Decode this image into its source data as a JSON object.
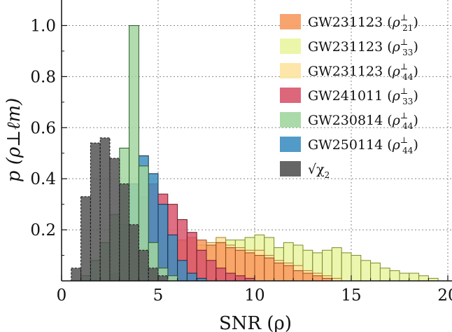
{
  "chart_data": {
    "type": "histogram",
    "xlabel": "SNR (ρ)",
    "ylabel": "p (ρ⊥ℓm)",
    "xlim": [
      0,
      20
    ],
    "ylim": [
      0,
      1.1
    ],
    "xticks": [
      0,
      5,
      10,
      15,
      20
    ],
    "yticks": [
      0.2,
      0.4,
      0.6,
      0.8,
      1.0
    ],
    "xtick_labels": [
      "0",
      "5",
      "10",
      "15",
      "20"
    ],
    "ytick_labels": [
      "0.2",
      "0.4",
      "0.6",
      "0.8",
      "1.0"
    ],
    "grid": true,
    "legend_position": "upper-right",
    "series": [
      {
        "name": "GW231123 (ρ⊥33)",
        "color": "#eaf5a0",
        "edge": "#7d8a2a",
        "x0": 3.0,
        "width": 0.5,
        "values": [
          0.01,
          0.02,
          0.04,
          0.07,
          0.1,
          0.13,
          0.14,
          0.13,
          0.12,
          0.13,
          0.15,
          0.16,
          0.16,
          0.17,
          0.18,
          0.17,
          0.13,
          0.15,
          0.14,
          0.12,
          0.11,
          0.12,
          0.13,
          0.11,
          0.1,
          0.08,
          0.07,
          0.05,
          0.04,
          0.03,
          0.03,
          0.02,
          0.01
        ]
      },
      {
        "name": "GW231123 (ρ⊥44)",
        "color": "#fde3a0",
        "edge": "#a87d2a",
        "x0": 3.0,
        "width": 0.5,
        "values": [
          0.02,
          0.05,
          0.09,
          0.13,
          0.15,
          0.17,
          0.16,
          0.15,
          0.14,
          0.15,
          0.17,
          0.14,
          0.13,
          0.12,
          0.12,
          0.1,
          0.08,
          0.07,
          0.06,
          0.04,
          0.03,
          0.02,
          0.01
        ]
      },
      {
        "name": "GW231123 (ρ⊥21)",
        "color": "#f79a5f",
        "edge": "#9a4a1a",
        "x0": 3.0,
        "width": 0.5,
        "values": [
          0.01,
          0.03,
          0.05,
          0.06,
          0.08,
          0.12,
          0.16,
          0.17,
          0.16,
          0.14,
          0.15,
          0.13,
          0.12,
          0.11,
          0.1,
          0.09,
          0.07,
          0.06,
          0.04,
          0.03,
          0.02,
          0.01
        ]
      },
      {
        "name": "GW241011 (ρ⊥33)",
        "color": "#d9566c",
        "edge": "#6e1a28",
        "x0": 2.5,
        "width": 0.5,
        "values": [
          0.02,
          0.08,
          0.2,
          0.33,
          0.38,
          0.34,
          0.3,
          0.24,
          0.19,
          0.12,
          0.08,
          0.05,
          0.03,
          0.02,
          0.01
        ]
      },
      {
        "name": "GW250114 (ρ⊥44)",
        "color": "#3f8fc1",
        "edge": "#0f2f4a",
        "x0": 2.5,
        "width": 0.5,
        "values": [
          0.03,
          0.22,
          0.38,
          0.49,
          0.42,
          0.3,
          0.18,
          0.08,
          0.03,
          0.01
        ]
      },
      {
        "name": "GW230814 (ρ⊥44)",
        "color": "#a2d6a0",
        "edge": "#2a5a2a",
        "x0": 1.0,
        "width": 0.5,
        "values": [
          0.02,
          0.08,
          0.15,
          0.26,
          0.52,
          1.0,
          0.45,
          0.15,
          0.05,
          0.02
        ]
      },
      {
        "name": "√χ²₂",
        "color": "#555555",
        "edge": "#111111",
        "x0": 0.5,
        "width": 0.5,
        "values": [
          0.05,
          0.33,
          0.54,
          0.56,
          0.48,
          0.38,
          0.22,
          0.12,
          0.05,
          0.02
        ]
      }
    ],
    "legend": [
      {
        "label_main": "GW231123 (",
        "sub": "21",
        "color": "#f79a5f"
      },
      {
        "label_main": "GW231123 (",
        "sub": "33",
        "color": "#eaf5a0"
      },
      {
        "label_main": "GW231123 (",
        "sub": "44",
        "color": "#fde3a0"
      },
      {
        "label_main": "GW241011 (",
        "sub": "33",
        "color": "#d9566c"
      },
      {
        "label_main": "GW230814 (",
        "sub": "44",
        "color": "#a2d6a0"
      },
      {
        "label_main": "GW250114 (",
        "sub": "44",
        "color": "#3f8fc1"
      },
      {
        "label_main": "√χ",
        "sub": "2",
        "color": "#555555"
      }
    ]
  }
}
